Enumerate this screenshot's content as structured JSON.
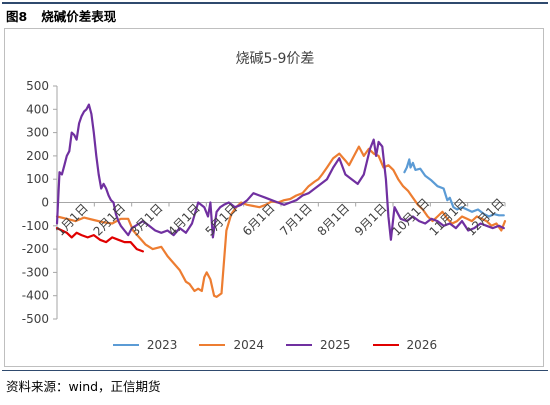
{
  "header": {
    "figure_label": "图8",
    "figure_title": "烧碱价差表现"
  },
  "source": "资料来源：wind，正信期货",
  "chart_data": {
    "type": "line",
    "title": "烧碱5-9价差",
    "xlabel": "",
    "ylabel": "",
    "ylim": [
      -500,
      500
    ],
    "yticks": [
      500,
      400,
      300,
      200,
      100,
      0,
      -100,
      -200,
      -300,
      -400,
      -500
    ],
    "x_tick_labels": [
      "1月1日",
      "2月1日",
      "3月1日",
      "4月1日",
      "5月1日",
      "6月1日",
      "7月1日",
      "8月1日",
      "9月1日",
      "10月1日",
      "11月1日",
      "12月1日"
    ],
    "x_range_days": [
      0,
      365
    ],
    "grid": false,
    "legend_position": "bottom",
    "series": [
      {
        "name": "2023",
        "color": "#5b9bd5",
        "x": [
          283,
          285,
          287,
          288,
          290,
          292,
          296,
          300,
          305,
          310,
          315,
          318,
          320,
          323,
          326,
          330,
          334,
          338,
          343,
          348,
          352,
          356,
          360,
          364
        ],
        "y": [
          130,
          150,
          185,
          150,
          170,
          140,
          145,
          115,
          95,
          70,
          60,
          10,
          20,
          -20,
          -30,
          -20,
          -30,
          -40,
          -30,
          -50,
          -60,
          -50,
          -55,
          -55
        ]
      },
      {
        "name": "2024",
        "color": "#ed7d31",
        "x": [
          0,
          8,
          15,
          22,
          30,
          38,
          45,
          52,
          58,
          62,
          67,
          72,
          78,
          85,
          90,
          95,
          100,
          105,
          108,
          112,
          115,
          118,
          120,
          122,
          125,
          128,
          130,
          134,
          138,
          142,
          146,
          150,
          155,
          160,
          165,
          170,
          175,
          180,
          185,
          190,
          195,
          200,
          205,
          210,
          213,
          216,
          220,
          225,
          230,
          235,
          238,
          242,
          246,
          250,
          254,
          258,
          262,
          266,
          270,
          274,
          278,
          282,
          286,
          290,
          294,
          298,
          302,
          306,
          310,
          314,
          318,
          322,
          326,
          330,
          334,
          338,
          342,
          346,
          350,
          354,
          358,
          362,
          365
        ],
        "y": [
          -60,
          -70,
          -80,
          -65,
          -75,
          -85,
          -90,
          -70,
          -70,
          -120,
          -150,
          -180,
          -200,
          -190,
          -230,
          -260,
          -290,
          -340,
          -350,
          -380,
          -370,
          -380,
          -320,
          -300,
          -330,
          -400,
          -405,
          -390,
          -120,
          -50,
          -20,
          0,
          -10,
          -15,
          -20,
          -10,
          5,
          0,
          10,
          15,
          30,
          40,
          70,
          90,
          100,
          120,
          150,
          190,
          210,
          180,
          160,
          200,
          240,
          200,
          230,
          210,
          200,
          150,
          160,
          140,
          100,
          70,
          50,
          20,
          -10,
          -30,
          -60,
          -80,
          -60,
          -40,
          -70,
          -90,
          -80,
          -60,
          -70,
          -80,
          -60,
          -70,
          -80,
          -100,
          -90,
          -120,
          -80
        ]
      },
      {
        "name": "2025",
        "color": "#7030a0",
        "x": [
          0,
          2,
          4,
          6,
          8,
          10,
          12,
          14,
          16,
          18,
          20,
          22,
          24,
          26,
          28,
          30,
          32,
          34,
          36,
          38,
          40,
          42,
          44,
          46,
          48,
          50,
          52,
          55,
          58,
          61,
          64,
          67,
          70,
          75,
          80,
          85,
          90,
          95,
          100,
          105,
          110,
          115,
          120,
          123,
          125,
          127,
          130,
          133,
          136,
          140,
          145,
          150,
          155,
          160,
          165,
          170,
          175,
          180,
          185,
          190,
          195,
          200,
          205,
          210,
          215,
          220,
          225,
          230,
          235,
          240,
          245,
          250,
          255,
          258,
          260,
          262,
          265,
          268,
          270,
          272,
          275,
          280,
          285,
          290,
          295,
          300,
          305,
          310,
          315,
          320,
          325,
          330,
          335,
          340,
          345,
          350,
          355,
          360,
          364
        ],
        "y": [
          -90,
          130,
          120,
          160,
          200,
          220,
          300,
          290,
          270,
          340,
          370,
          390,
          400,
          420,
          380,
          300,
          200,
          120,
          60,
          80,
          60,
          30,
          10,
          0,
          -50,
          -80,
          -100,
          -120,
          -140,
          -110,
          -100,
          -90,
          -80,
          -100,
          -120,
          -130,
          -120,
          -140,
          -110,
          -130,
          -90,
          0,
          -20,
          -60,
          0,
          -150,
          -40,
          -20,
          -10,
          0,
          -20,
          -10,
          10,
          40,
          30,
          20,
          10,
          0,
          -10,
          0,
          10,
          30,
          40,
          60,
          80,
          100,
          150,
          190,
          120,
          100,
          80,
          120,
          230,
          270,
          200,
          260,
          240,
          100,
          -60,
          -160,
          -20,
          -70,
          -80,
          -60,
          -80,
          -90,
          -70,
          -80,
          -100,
          -90,
          -110,
          -80,
          -120,
          -110,
          -90,
          -100,
          -110,
          -100,
          -110
        ]
      },
      {
        "name": "2026",
        "color": "#e00000",
        "x": [
          0,
          4,
          8,
          12,
          16,
          20,
          25,
          30,
          35,
          40,
          45,
          50,
          55,
          60,
          65,
          70
        ],
        "y": [
          -110,
          -120,
          -130,
          -150,
          -130,
          -140,
          -150,
          -140,
          -160,
          -170,
          -150,
          -160,
          -170,
          -170,
          -200,
          -210
        ]
      }
    ]
  }
}
